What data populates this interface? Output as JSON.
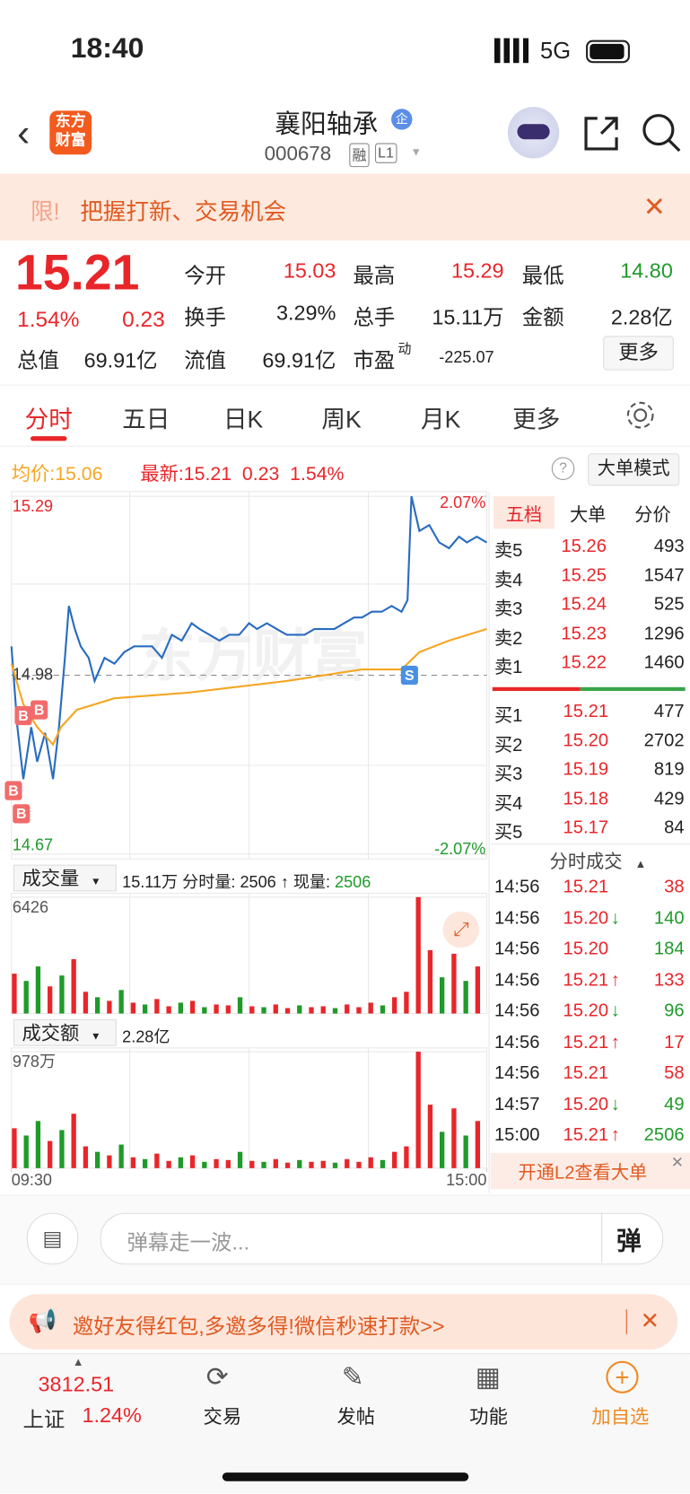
{
  "status": {
    "time": "18:40",
    "network": "5G"
  },
  "header": {
    "logo": [
      "东方",
      "财富"
    ],
    "title": "襄阳轴承",
    "badge": "企",
    "code": "000678",
    "tags": [
      "融",
      "L1"
    ]
  },
  "banner": {
    "prefix": "限!",
    "text": "把握打新、交易机会"
  },
  "quote": {
    "price": "15.21",
    "change_pct": "1.54%",
    "change": "0.23",
    "stats": [
      {
        "label": "今开",
        "value": "15.03"
      },
      {
        "label": "最高",
        "value": "15.29"
      },
      {
        "label": "最低",
        "value": "14.80"
      },
      {
        "label": "换手",
        "value": "3.29%"
      },
      {
        "label": "总手",
        "value": "15.11万"
      },
      {
        "label": "金额",
        "value": "2.28亿"
      },
      {
        "label": "总值",
        "value": "69.91亿"
      },
      {
        "label": "流值",
        "value": "69.91亿"
      },
      {
        "label": "市盈",
        "label_sup": "动",
        "value": "-225.07"
      }
    ],
    "more": "更多"
  },
  "tabs": [
    "分时",
    "五日",
    "日K",
    "周K",
    "月K",
    "更多"
  ],
  "info": {
    "avg_label": "均价:",
    "avg": "15.06",
    "latest_label": "最新:",
    "latest": "15.21",
    "change": "0.23",
    "change_pct": "1.54%",
    "mode": "大单模式"
  },
  "panels": {
    "volume": {
      "selector": "成交量",
      "total": "15.11万",
      "period_label": "分时量:",
      "period": "2506",
      "arrow": "↑",
      "current_label": "现量:",
      "current": "2506"
    },
    "amount": {
      "selector": "成交额",
      "total": "2.28亿"
    }
  },
  "book": {
    "tabs": [
      "五档",
      "大单",
      "分价"
    ],
    "asks": [
      {
        "label": "卖5",
        "price": "15.26",
        "vol": "493"
      },
      {
        "label": "卖4",
        "price": "15.25",
        "vol": "1547"
      },
      {
        "label": "卖3",
        "price": "15.24",
        "vol": "525"
      },
      {
        "label": "卖2",
        "price": "15.23",
        "vol": "1296"
      },
      {
        "label": "卖1",
        "price": "15.22",
        "vol": "1460"
      }
    ],
    "bids": [
      {
        "label": "买1",
        "price": "15.21",
        "vol": "477"
      },
      {
        "label": "买2",
        "price": "15.20",
        "vol": "2702"
      },
      {
        "label": "买3",
        "price": "15.19",
        "vol": "819"
      },
      {
        "label": "买4",
        "price": "15.18",
        "vol": "429"
      },
      {
        "label": "买5",
        "price": "15.17",
        "vol": "84"
      }
    ]
  },
  "trades": {
    "title": "分时成交",
    "rows": [
      {
        "time": "14:56",
        "price": "15.21",
        "arrow": "",
        "vol": "38",
        "color": "#e8262a"
      },
      {
        "time": "14:56",
        "price": "15.20",
        "arrow": "↓",
        "vol": "140",
        "color": "#1f9a2a"
      },
      {
        "time": "14:56",
        "price": "15.20",
        "arrow": "",
        "vol": "184",
        "color": "#1f9a2a"
      },
      {
        "time": "14:56",
        "price": "15.21",
        "arrow": "↑",
        "vol": "133",
        "color": "#e8262a"
      },
      {
        "time": "14:56",
        "price": "15.20",
        "arrow": "↓",
        "vol": "96",
        "color": "#1f9a2a"
      },
      {
        "time": "14:56",
        "price": "15.21",
        "arrow": "↑",
        "vol": "17",
        "color": "#e8262a"
      },
      {
        "time": "14:56",
        "price": "15.21",
        "arrow": "",
        "vol": "58",
        "color": "#e8262a"
      },
      {
        "time": "14:57",
        "price": "15.20",
        "arrow": "↓",
        "vol": "49",
        "color": "#1f9a2a"
      },
      {
        "time": "15:00",
        "price": "15.21",
        "arrow": "↑",
        "vol": "2506",
        "color": "#1f9a2a"
      }
    ],
    "link": "开通L2查看大单"
  },
  "comment": {
    "placeholder": "弹幕走一波...",
    "button": "弹"
  },
  "promo": "邀好友得红包,多邀多得!微信秒速打款>>",
  "nav": {
    "index_value": "3812.51",
    "index_name": "上证",
    "index_pct": "1.24%",
    "items": [
      "交易",
      "发帖",
      "功能",
      "加自选"
    ]
  },
  "watermark": "东方财富",
  "chart_data": [
    {
      "type": "line",
      "xlim": [
        0,
        240
      ],
      "ylim": [
        14.67,
        15.29
      ],
      "yticks": [
        15.29,
        14.98,
        14.67
      ],
      "y2lim": [
        -2.07,
        2.07
      ],
      "y2ticks": [
        {
          "value": 2.07,
          "label": "2.07%"
        },
        {
          "value": -2.07,
          "label": "-2.07%"
        }
      ],
      "grid": true,
      "series": [
        {
          "color": "#2a6cc0",
          "x": [
            0,
            3,
            6,
            10,
            13,
            17,
            21,
            24,
            27,
            29,
            32,
            35,
            39,
            42,
            47,
            52,
            57,
            62,
            67,
            71,
            76,
            81,
            86,
            91,
            95,
            100,
            105,
            110,
            115,
            120,
            124,
            129,
            134,
            139,
            144,
            148,
            153,
            158,
            163,
            168,
            173,
            177,
            182,
            187,
            192,
            197,
            200,
            202,
            206,
            211,
            216,
            221,
            226,
            230,
            235,
            240
          ],
          "values": [
            15.03,
            14.89,
            14.8,
            14.89,
            14.83,
            14.88,
            14.8,
            14.89,
            15.01,
            15.1,
            15.06,
            15.03,
            15.01,
            14.97,
            15.01,
            15.0,
            15.02,
            15.03,
            15.03,
            15.03,
            15.01,
            15.05,
            15.04,
            15.07,
            15.06,
            15.05,
            15.04,
            15.05,
            15.05,
            15.07,
            15.06,
            15.07,
            15.06,
            15.05,
            15.05,
            15.05,
            15.06,
            15.06,
            15.06,
            15.07,
            15.08,
            15.08,
            15.09,
            15.09,
            15.1,
            15.09,
            15.11,
            15.29,
            15.23,
            15.24,
            15.21,
            15.2,
            15.22,
            15.21,
            15.22,
            15.21
          ]
        },
        {
          "color": "#f5a623",
          "x": [
            0,
            6,
            13,
            21,
            25,
            33,
            52,
            90,
            139,
            177,
            197,
            206,
            221,
            240
          ],
          "values": [
            15.0,
            14.93,
            14.89,
            14.86,
            14.89,
            14.92,
            14.94,
            14.95,
            14.97,
            14.99,
            14.99,
            15.02,
            15.04,
            15.06
          ]
        }
      ],
      "markers": [
        {
          "label": "B",
          "x": 6,
          "y": 14.91
        },
        {
          "label": "B",
          "x": 14,
          "y": 14.92
        },
        {
          "label": "B",
          "x": 1,
          "y": 14.78
        },
        {
          "label": "B",
          "x": 5,
          "y": 14.74
        },
        {
          "label": "S",
          "x": 201,
          "y": 14.98
        }
      ]
    },
    {
      "type": "bar",
      "xlim": [
        0,
        240
      ],
      "ylim": [
        0,
        6426
      ],
      "yticks": [
        6426
      ],
      "grid": true,
      "x": [
        0,
        6,
        12,
        18,
        24,
        30,
        36,
        42,
        48,
        54,
        60,
        66,
        72,
        78,
        84,
        90,
        96,
        102,
        108,
        114,
        120,
        126,
        132,
        138,
        144,
        150,
        156,
        162,
        168,
        174,
        180,
        186,
        192,
        198,
        204,
        210,
        216,
        222,
        228,
        234
      ],
      "values": [
        2200,
        1800,
        2600,
        1500,
        2100,
        3000,
        1200,
        900,
        700,
        1300,
        600,
        500,
        800,
        400,
        600,
        700,
        350,
        500,
        450,
        900,
        400,
        350,
        500,
        300,
        450,
        350,
        400,
        300,
        500,
        350,
        600,
        450,
        900,
        1200,
        6426,
        3500,
        2000,
        3300,
        1800,
        2600
      ],
      "colors": [
        "#e8262a",
        "#1f9a2a",
        "#1f9a2a",
        "#e8262a",
        "#1f9a2a",
        "#e8262a",
        "#e8262a",
        "#1f9a2a",
        "#e8262a",
        "#1f9a2a",
        "#e8262a",
        "#1f9a2a",
        "#e8262a",
        "#e8262a",
        "#1f9a2a",
        "#e8262a",
        "#1f9a2a",
        "#e8262a",
        "#e8262a",
        "#1f9a2a",
        "#e8262a",
        "#1f9a2a",
        "#e8262a",
        "#e8262a",
        "#1f9a2a",
        "#e8262a",
        "#e8262a",
        "#1f9a2a",
        "#e8262a",
        "#e8262a",
        "#e8262a",
        "#1f9a2a",
        "#e8262a",
        "#e8262a",
        "#e8262a",
        "#e8262a",
        "#1f9a2a",
        "#e8262a",
        "#1f9a2a",
        "#e8262a"
      ]
    },
    {
      "type": "bar",
      "xlim": [
        0,
        240
      ],
      "ylim": [
        0,
        978
      ],
      "yticks": [
        {
          "value": 978,
          "label": "978万"
        }
      ],
      "xticks": [
        {
          "value": 0,
          "label": "09:30"
        },
        {
          "value": 240,
          "label": "15:00"
        }
      ],
      "grid": true,
      "x": [
        0,
        6,
        12,
        18,
        24,
        30,
        36,
        42,
        48,
        54,
        60,
        66,
        72,
        78,
        84,
        90,
        96,
        102,
        108,
        114,
        120,
        126,
        132,
        138,
        144,
        150,
        156,
        162,
        168,
        174,
        180,
        186,
        192,
        198,
        204,
        210,
        216,
        222,
        228,
        234
      ],
      "values": [
        335,
        274,
        396,
        228,
        320,
        457,
        183,
        137,
        107,
        198,
        91,
        76,
        122,
        61,
        91,
        107,
        53,
        76,
        68,
        137,
        61,
        53,
        76,
        46,
        68,
        53,
        61,
        46,
        76,
        53,
        91,
        68,
        137,
        183,
        978,
        533,
        305,
        502,
        274,
        396
      ],
      "colors": [
        "#e8262a",
        "#1f9a2a",
        "#1f9a2a",
        "#e8262a",
        "#1f9a2a",
        "#e8262a",
        "#e8262a",
        "#1f9a2a",
        "#e8262a",
        "#1f9a2a",
        "#e8262a",
        "#1f9a2a",
        "#e8262a",
        "#e8262a",
        "#1f9a2a",
        "#e8262a",
        "#1f9a2a",
        "#e8262a",
        "#e8262a",
        "#1f9a2a",
        "#e8262a",
        "#1f9a2a",
        "#e8262a",
        "#e8262a",
        "#1f9a2a",
        "#e8262a",
        "#e8262a",
        "#1f9a2a",
        "#e8262a",
        "#e8262a",
        "#e8262a",
        "#1f9a2a",
        "#e8262a",
        "#e8262a",
        "#e8262a",
        "#e8262a",
        "#1f9a2a",
        "#e8262a",
        "#1f9a2a",
        "#e8262a"
      ]
    }
  ]
}
